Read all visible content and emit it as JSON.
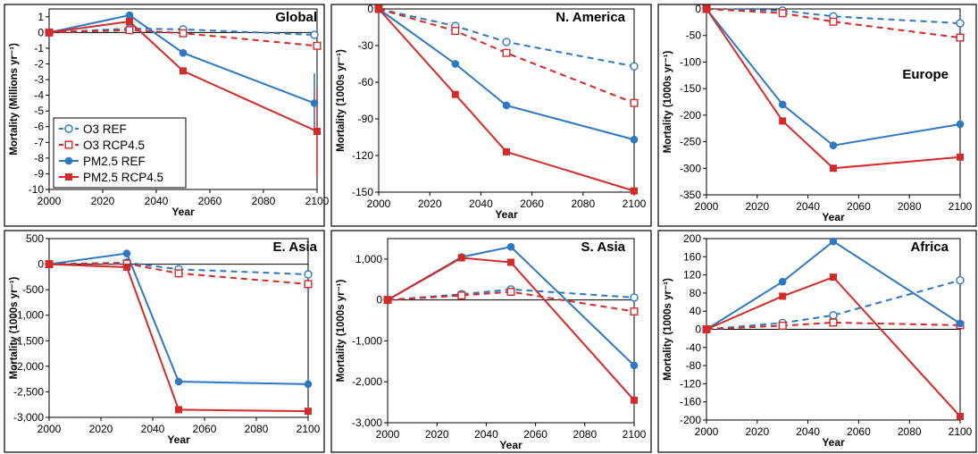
{
  "colors": {
    "ref": "#2e78c2",
    "rcp": "#d42a2a",
    "axis": "#000000",
    "frame": "#000000"
  },
  "chart_data": [
    {
      "type": "line",
      "title": "Global",
      "xlabel": "Year",
      "ylabel": "Mortality (Millions yr⁻¹)",
      "xlim": [
        2000,
        2100
      ],
      "ylim": [
        -10,
        1.5
      ],
      "xticks": [
        "2000",
        "2020",
        "2040",
        "2060",
        "2080",
        "2100"
      ],
      "yticks": [
        1,
        0,
        -1,
        -2,
        -3,
        -4,
        -5,
        -6,
        -7,
        -8,
        -9,
        -10
      ],
      "ytick_labels": [
        "1",
        "0",
        "-1",
        "-2",
        "-3",
        "-4",
        "-5",
        "-6",
        "-7",
        "-8",
        "-9",
        "-10"
      ],
      "legend": {
        "placement": "lower-left",
        "entries": [
          "O3 REF",
          "O3 RCP4.5",
          "PM2.5 REF",
          "PM2.5 RCP4.5"
        ]
      },
      "series": [
        {
          "name": "O3 REF",
          "style": "dashed",
          "marker": "open-circle",
          "x": [
            2000,
            2030,
            2050,
            2099
          ],
          "y": [
            0,
            0.25,
            0.2,
            -0.15
          ]
        },
        {
          "name": "O3 RCP4.5",
          "style": "dashed",
          "marker": "open-square",
          "x": [
            2000,
            2030,
            2050,
            2100
          ],
          "y": [
            0,
            0.15,
            -0.05,
            -0.85
          ]
        },
        {
          "name": "PM2.5 REF",
          "style": "solid",
          "marker": "filled-circle",
          "x": [
            2000,
            2030,
            2050,
            2099
          ],
          "y": [
            0,
            1.1,
            -1.3,
            -4.5
          ],
          "error": [
            {
              "x": 2099,
              "low": -6.4,
              "high": -2.6
            }
          ]
        },
        {
          "name": "PM2.5 RCP4.5",
          "style": "solid",
          "marker": "filled-square",
          "x": [
            2000,
            2030,
            2050,
            2100
          ],
          "y": [
            0,
            0.7,
            -2.45,
            -6.3
          ],
          "error": [
            {
              "x": 2100,
              "low": -9.2,
              "high": -3.6
            }
          ]
        }
      ]
    },
    {
      "type": "line",
      "title": "N. America",
      "xlabel": "Year",
      "ylabel": "Mortality (1000s yr⁻¹)",
      "xlim": [
        2000,
        2100
      ],
      "ylim": [
        -150,
        0
      ],
      "xticks": [
        "2000",
        "2020",
        "2040",
        "2060",
        "2080",
        "2100"
      ],
      "yticks": [
        0,
        -30,
        -60,
        -90,
        -120,
        -150
      ],
      "ytick_labels": [
        "0",
        "-30",
        "-60",
        "-90",
        "-120",
        "-150"
      ],
      "series": [
        {
          "name": "O3 REF",
          "style": "dashed",
          "marker": "open-circle",
          "x": [
            2000,
            2030,
            2050,
            2100
          ],
          "y": [
            0,
            -14,
            -27,
            -47
          ]
        },
        {
          "name": "O3 RCP4.5",
          "style": "dashed",
          "marker": "open-square",
          "x": [
            2000,
            2030,
            2050,
            2100
          ],
          "y": [
            0,
            -18,
            -36,
            -77
          ]
        },
        {
          "name": "PM2.5 REF",
          "style": "solid",
          "marker": "filled-circle",
          "x": [
            2000,
            2030,
            2050,
            2100
          ],
          "y": [
            0,
            -45,
            -79,
            -107
          ]
        },
        {
          "name": "PM2.5 RCP4.5",
          "style": "solid",
          "marker": "filled-square",
          "x": [
            2000,
            2030,
            2050,
            2100
          ],
          "y": [
            0,
            -70,
            -117,
            -149
          ]
        }
      ]
    },
    {
      "type": "line",
      "title": "Europe",
      "xlabel": "Year",
      "ylabel": "Mortality (1000s yr⁻¹)",
      "xlim": [
        2000,
        2100
      ],
      "ylim": [
        -350,
        0
      ],
      "xticks": [
        "2000",
        "2020",
        "2040",
        "2060",
        "2080",
        "2100"
      ],
      "yticks": [
        0,
        -50,
        -100,
        -150,
        -200,
        -250,
        -300,
        -350
      ],
      "ytick_labels": [
        "0",
        "-50",
        "-100",
        "-150",
        "-200",
        "-250",
        "-300",
        "-350"
      ],
      "series": [
        {
          "name": "O3 REF",
          "style": "dashed",
          "marker": "open-circle",
          "x": [
            2000,
            2030,
            2050,
            2100
          ],
          "y": [
            0,
            -3,
            -14,
            -27
          ]
        },
        {
          "name": "O3 RCP4.5",
          "style": "dashed",
          "marker": "open-square",
          "x": [
            2000,
            2030,
            2050,
            2100
          ],
          "y": [
            0,
            -8,
            -24,
            -54
          ]
        },
        {
          "name": "PM2.5 REF",
          "style": "solid",
          "marker": "filled-circle",
          "x": [
            2000,
            2030,
            2050,
            2100
          ],
          "y": [
            0,
            -180,
            -257,
            -217
          ]
        },
        {
          "name": "PM2.5 RCP4.5",
          "style": "solid",
          "marker": "filled-square",
          "x": [
            2000,
            2030,
            2050,
            2100
          ],
          "y": [
            0,
            -211,
            -300,
            -279
          ]
        }
      ]
    },
    {
      "type": "line",
      "title": "E. Asia",
      "xlabel": "Year",
      "ylabel": "Mortality (1000s yr⁻¹)",
      "xlim": [
        2000,
        2100
      ],
      "ylim": [
        -3000,
        500
      ],
      "xticks": [
        "2000",
        "2020",
        "2040",
        "2060",
        "2080",
        "2100"
      ],
      "yticks": [
        500,
        0,
        -500,
        -1000,
        -1500,
        -2000,
        -2500,
        -3000
      ],
      "ytick_labels": [
        "500",
        "0",
        "-500",
        "-1,000",
        "-1,500",
        "-2,000",
        "-2,500",
        "-3,000"
      ],
      "series": [
        {
          "name": "O3 REF",
          "style": "dashed",
          "marker": "open-circle",
          "x": [
            2000,
            2030,
            2050,
            2100
          ],
          "y": [
            0,
            30,
            -100,
            -200
          ]
        },
        {
          "name": "O3 RCP4.5",
          "style": "dashed",
          "marker": "open-square",
          "x": [
            2000,
            2030,
            2050,
            2100
          ],
          "y": [
            0,
            10,
            -180,
            -390
          ]
        },
        {
          "name": "PM2.5 REF",
          "style": "solid",
          "marker": "filled-circle",
          "x": [
            2000,
            2030,
            2050,
            2100
          ],
          "y": [
            0,
            210,
            -2300,
            -2350
          ]
        },
        {
          "name": "PM2.5 RCP4.5",
          "style": "solid",
          "marker": "filled-square",
          "x": [
            2000,
            2030,
            2050,
            2100
          ],
          "y": [
            0,
            -60,
            -2850,
            -2880
          ]
        }
      ]
    },
    {
      "type": "line",
      "title": "S. Asia",
      "xlabel": "Year",
      "ylabel": "Mortality (1000s yr⁻¹)",
      "xlim": [
        2000,
        2100
      ],
      "ylim": [
        -3000,
        1500
      ],
      "xticks": [
        "2000",
        "2020",
        "2040",
        "2060",
        "2080",
        "2100"
      ],
      "yticks": [
        1000,
        0,
        -1000,
        -2000,
        -3000
      ],
      "ytick_labels": [
        "1,000",
        "0",
        "-1,000",
        "-2,000",
        "-3,000"
      ],
      "series": [
        {
          "name": "O3 REF",
          "style": "dashed",
          "marker": "open-circle",
          "x": [
            2000,
            2030,
            2050,
            2100
          ],
          "y": [
            0,
            140,
            260,
            60
          ]
        },
        {
          "name": "O3 RCP4.5",
          "style": "dashed",
          "marker": "open-square",
          "x": [
            2000,
            2030,
            2050,
            2100
          ],
          "y": [
            0,
            110,
            200,
            -280
          ]
        },
        {
          "name": "PM2.5 REF",
          "style": "solid",
          "marker": "filled-circle",
          "x": [
            2000,
            2030,
            2050,
            2100
          ],
          "y": [
            0,
            1050,
            1300,
            -1600
          ]
        },
        {
          "name": "PM2.5 RCP4.5",
          "style": "solid",
          "marker": "filled-square",
          "x": [
            2000,
            2030,
            2050,
            2100
          ],
          "y": [
            0,
            1030,
            920,
            -2450
          ]
        }
      ]
    },
    {
      "type": "line",
      "title": "Africa",
      "xlabel": "Year",
      "ylabel": "Mortality (1000s yr⁻¹)",
      "xlim": [
        2000,
        2100
      ],
      "ylim": [
        -200,
        200
      ],
      "xticks": [
        "2000",
        "2020",
        "2040",
        "2060",
        "2080",
        "2100"
      ],
      "yticks": [
        200,
        160,
        120,
        80,
        40,
        0,
        -40,
        -80,
        -120,
        -160,
        -200
      ],
      "ytick_labels": [
        "200",
        "160",
        "120",
        "80",
        "40",
        "0",
        "-40",
        "-80",
        "-120",
        "-160",
        "-200"
      ],
      "series": [
        {
          "name": "O3 REF",
          "style": "dashed",
          "marker": "open-circle",
          "x": [
            2000,
            2030,
            2050,
            2100
          ],
          "y": [
            0,
            14,
            31,
            108
          ]
        },
        {
          "name": "O3 RCP4.5",
          "style": "dashed",
          "marker": "open-square",
          "x": [
            2000,
            2030,
            2050,
            2100
          ],
          "y": [
            0,
            8,
            15,
            9
          ]
        },
        {
          "name": "PM2.5 REF",
          "style": "solid",
          "marker": "filled-circle",
          "x": [
            2000,
            2030,
            2050,
            2100
          ],
          "y": [
            0,
            105,
            194,
            13
          ]
        },
        {
          "name": "PM2.5 RCP4.5",
          "style": "solid",
          "marker": "filled-square",
          "x": [
            2000,
            2030,
            2050,
            2100
          ],
          "y": [
            0,
            73,
            115,
            -192
          ]
        }
      ]
    }
  ]
}
